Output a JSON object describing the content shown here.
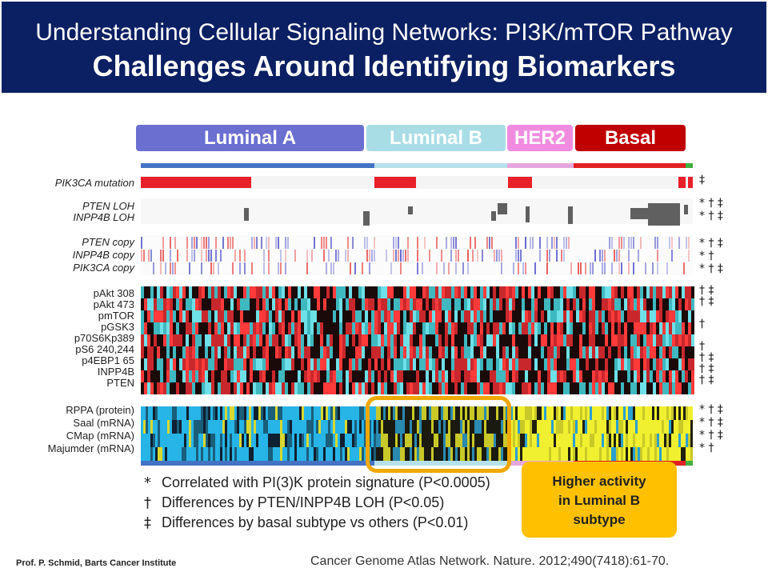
{
  "header": {
    "line1": "Understanding Cellular Signaling Networks: PI3K/mTOR Pathway",
    "line2": "Challenges Around Identifying Biomarkers"
  },
  "subtypes": [
    {
      "label": "Luminal A",
      "color": "#6b6fd0"
    },
    {
      "label": "Luminal B",
      "color": "#a9dde6"
    },
    {
      "label": "HER2",
      "color": "#f08ce0"
    },
    {
      "label": "Basal",
      "color": "#c00000"
    }
  ],
  "rows": {
    "mutation": [
      "PIK3CA mutation"
    ],
    "loh": [
      "PTEN LOH",
      "INPP4B LOH"
    ],
    "copy": [
      "PTEN copy",
      "INPP4B copy",
      "PIK3CA copy"
    ],
    "protein": [
      "pAkt 308",
      "pAkt 473",
      "pmTOR",
      "pGSK3",
      "p70S6Kp389",
      "pS6 240,244",
      "p4EBP1 65",
      "INPP4B",
      "PTEN"
    ],
    "signature": [
      "RPPA (protein)",
      "Saal (mRNA)",
      "CMap (mRNA)",
      "Majumder (mRNA)"
    ]
  },
  "legend": [
    {
      "mark": "*",
      "text": "Correlated with PI(3)K protein signature (P<0.0005)"
    },
    {
      "mark": "†",
      "text": "Differences by PTEN/INPP4B LOH (P<0.05)"
    },
    {
      "mark": "‡",
      "text": "Differences by basal subtype vs others (P<0.01)"
    }
  ],
  "callout": {
    "line1": "Higher activity",
    "line2": "in Luminal B",
    "line3": "subtype"
  },
  "footer": {
    "left": "Prof. P. Schmid, Barts Cancer Institute",
    "citation": "Cancer Genome Atlas Network. Nature. 2012;490(7418):61-70."
  }
}
